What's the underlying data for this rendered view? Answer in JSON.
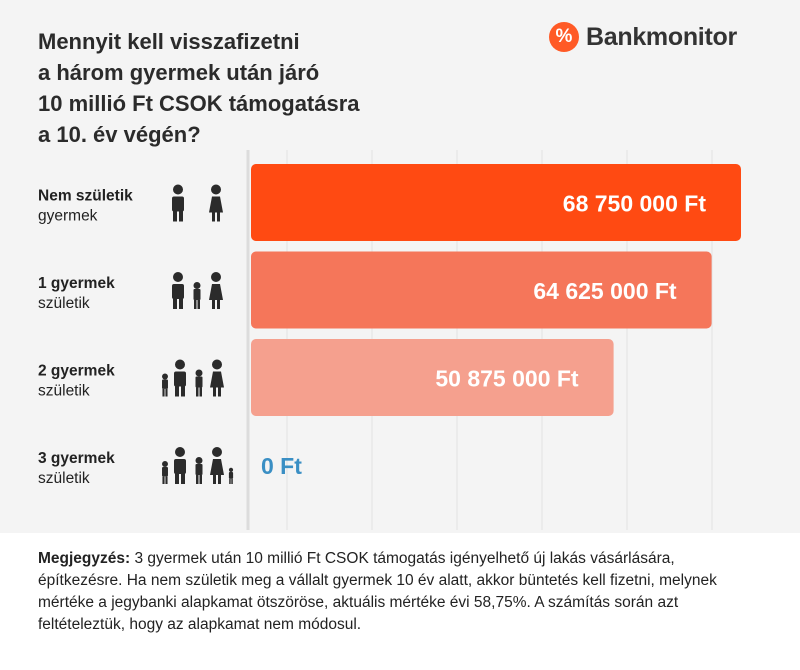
{
  "header": {
    "title_lines": [
      "Mennyit kell visszafizetni",
      "a három gyermek után járó",
      "10 millió Ft CSOK támogatásra",
      "a 10. év végén?"
    ]
  },
  "brand": {
    "logo_mark": "%",
    "name": "Bankmonitor",
    "color": "#ff5a26"
  },
  "chart_data": {
    "type": "bar",
    "orientation": "horizontal",
    "title": "Mennyit kell visszafizetni a három gyermek után járó 10 millió Ft CSOK támogatásra a 10. év végén?",
    "categories": [
      {
        "line1": "Nem születik",
        "line2": "gyermek",
        "children": 0
      },
      {
        "line1": "1 gyermek",
        "line2": "születik",
        "children": 1
      },
      {
        "line1": "2 gyermek",
        "line2": "születik",
        "children": 2
      },
      {
        "line1": "3 gyermek",
        "line2": "születik",
        "children": 3
      }
    ],
    "values": [
      68750000,
      64625000,
      50875000,
      0
    ],
    "value_labels": [
      "68 750 000 Ft",
      "64 625 000 Ft",
      "50 875 000 Ft",
      "0 Ft"
    ],
    "xlim": [
      0,
      68750000
    ],
    "bar_colors": [
      "#ff4a12",
      "#f5765a",
      "#f5a08e",
      "#f8c6bb"
    ],
    "zero_label_color": "#3a8fc4",
    "grid": true,
    "grid_color": "#e2e2e2",
    "legend": "none",
    "xlabel": "",
    "ylabel": ""
  },
  "note": {
    "label": "Megjegyzés:",
    "text": " 3 gyermek után 10 millió Ft CSOK támogatás igényelhető új lakás vásárlására, építkezésre. Ha nem születik meg a vállalt gyermek 10 év alatt, akkor büntetés kell fizetni, melynek mértéke a jegybanki alapkamat ötszöröse, aktuális mértéke évi 58,75%. A számítás során azt feltételeztük, hogy az alapkamat nem módosul."
  }
}
